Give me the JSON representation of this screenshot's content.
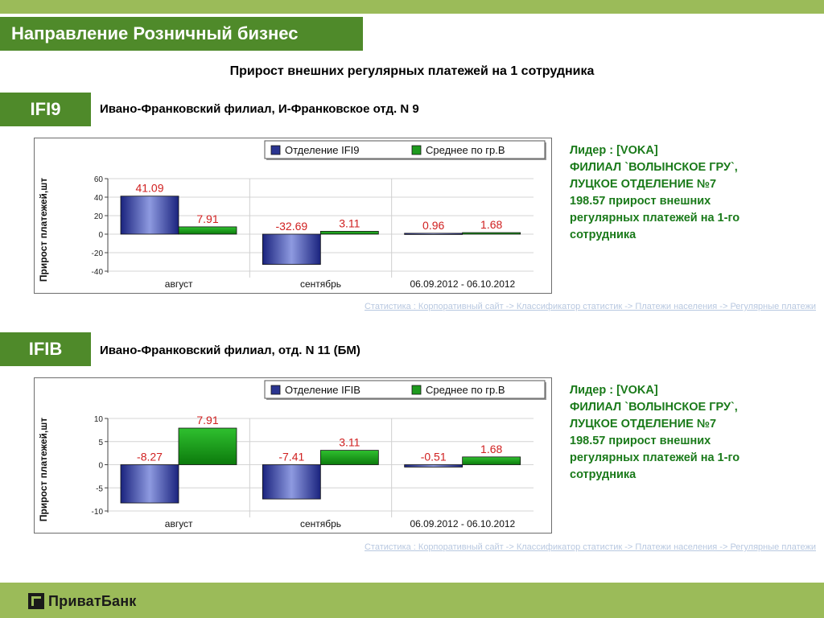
{
  "header": {
    "title": "Направление Розничный бизнес",
    "subtitle": "Прирост внешних регулярных платежей на 1 сотрудника"
  },
  "colors": {
    "accent": "#4f8a2a",
    "band": "#9bbb59",
    "leader_text": "#1a7a1a",
    "bar_blue": "#2b3590",
    "bar_green": "#1e9a1e",
    "label_red": "#d02020"
  },
  "sections": [
    {
      "code": "IFI9",
      "branch": "Ивано-Франковский филиал, И-Франковское отд. N 9",
      "leader": [
        "Лидер : [VOKA]",
        "ФИЛИАЛ `ВОЛЫНСКОЕ ГРУ`,",
        "ЛУЦКОЕ ОТДЕЛЕНИЕ №7",
        "198.57 прирост внешних",
        "регулярных платежей на 1-го",
        "сотрудника"
      ],
      "source_link": "Статистика : Корпоративный сайт -> Классификатор статистик -> Платежи населения -> Регулярные платежи"
    },
    {
      "code": "IFIB",
      "branch": "Ивано-Франковский филиал, отд. N 11 (БМ)",
      "leader": [
        "Лидер : [VOKA]",
        "ФИЛИАЛ `ВОЛЫНСКОЕ ГРУ`,",
        "ЛУЦКОЕ ОТДЕЛЕНИЕ №7",
        "198.57 прирост внешних",
        "регулярных платежей на 1-го",
        "сотрудника"
      ],
      "source_link": "Статистика : Корпоративный сайт -> Классификатор статистик -> Платежи населения -> Регулярные платежи"
    }
  ],
  "chart_data": [
    {
      "type": "bar",
      "ylabel": "Прирост платежей,шт",
      "categories": [
        "август",
        "сентябрь",
        "06.09.2012 - 06.10.2012"
      ],
      "series": [
        {
          "name": "Отделение IFI9",
          "values": [
            41.09,
            -32.69,
            0.96
          ],
          "labels": [
            "41.09",
            "-32.69",
            "0.96"
          ]
        },
        {
          "name": "Среднее по гр.В",
          "values": [
            7.91,
            3.11,
            1.68
          ],
          "labels": [
            "7.91",
            "3.11",
            "1.68"
          ]
        }
      ],
      "ylim": [
        -40,
        60
      ],
      "yticks": [
        -40,
        -20,
        0,
        20,
        40,
        60
      ],
      "legend": "top-right",
      "grid": true
    },
    {
      "type": "bar",
      "ylabel": "Прирост платежей,шт",
      "categories": [
        "август",
        "сентябрь",
        "06.09.2012 - 06.10.2012"
      ],
      "series": [
        {
          "name": "Отделение IFIB",
          "values": [
            -8.27,
            -7.41,
            -0.51
          ],
          "labels": [
            "-8.27",
            "-7.41",
            "-0.51"
          ]
        },
        {
          "name": "Среднее по гр.В",
          "values": [
            7.91,
            3.11,
            1.68
          ],
          "labels": [
            "7.91",
            "3.11",
            "1.68"
          ]
        }
      ],
      "ylim": [
        -10,
        10
      ],
      "yticks": [
        -10,
        -5,
        0,
        5,
        10
      ],
      "legend": "top-right",
      "grid": true
    }
  ],
  "footer": {
    "logo_text": "ПриватБанк",
    "logo_icon": "privatbank-logo-icon"
  }
}
